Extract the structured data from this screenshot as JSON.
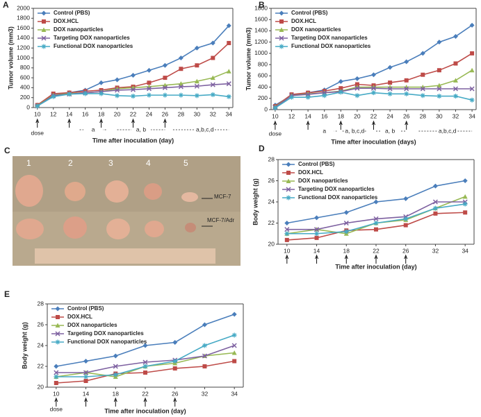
{
  "chart_data": [
    {
      "type": "line",
      "panel": "A",
      "xlabel": "Time after inoculation (day)",
      "ylabel": "Tumor volume (mm3)",
      "x": [
        10,
        12,
        14,
        16,
        18,
        20,
        22,
        24,
        26,
        28,
        30,
        32,
        34
      ],
      "xlim": [
        9.5,
        34.5
      ],
      "xticks": [
        10,
        12,
        14,
        16,
        18,
        20,
        22,
        24,
        26,
        28,
        30,
        32,
        34
      ],
      "ylim": [
        0,
        2000
      ],
      "yticks": [
        0,
        200,
        400,
        600,
        800,
        1000,
        1200,
        1400,
        1600,
        1800,
        2000
      ],
      "legend": "upper left",
      "dose_label": "dose",
      "dose_days": [
        10,
        14,
        18,
        22,
        26
      ],
      "annotations": [
        "a",
        "a, b",
        "a,b,c,d"
      ],
      "series": [
        {
          "name": "Control (PBS)",
          "color": "#4a7ebb",
          "marker": "diamond",
          "values": [
            50,
            250,
            300,
            350,
            500,
            560,
            650,
            750,
            850,
            1000,
            1200,
            1300,
            1650
          ]
        },
        {
          "name": "DOX.HCL",
          "color": "#be4b48",
          "marker": "square",
          "values": [
            50,
            280,
            300,
            330,
            350,
            400,
            420,
            500,
            600,
            780,
            850,
            1000,
            1300
          ]
        },
        {
          "name": "DOX nanoparticles",
          "color": "#98b954",
          "marker": "triangle",
          "values": [
            40,
            250,
            280,
            300,
            320,
            380,
            400,
            420,
            450,
            480,
            530,
            600,
            730
          ]
        },
        {
          "name": "Targeting DOX nanoparticles",
          "color": "#7d60a0",
          "marker": "x",
          "values": [
            30,
            240,
            270,
            300,
            320,
            350,
            360,
            380,
            400,
            420,
            430,
            460,
            480
          ]
        },
        {
          "name": "Functional DOX nanoparticles",
          "color": "#46aac5",
          "marker": "star",
          "values": [
            30,
            220,
            270,
            280,
            280,
            240,
            230,
            250,
            250,
            250,
            240,
            260,
            220
          ]
        }
      ]
    },
    {
      "type": "line",
      "panel": "B",
      "xlabel": "Time after inoculation (days)",
      "ylabel": "Tumor volume (mm3)",
      "x": [
        10,
        12,
        14,
        16,
        18,
        20,
        22,
        24,
        26,
        28,
        30,
        32,
        34
      ],
      "xlim": [
        9.5,
        34.5
      ],
      "xticks": [
        10,
        12,
        14,
        16,
        18,
        20,
        22,
        24,
        26,
        28,
        30,
        32,
        34
      ],
      "ylim": [
        0,
        1800
      ],
      "yticks": [
        0,
        200,
        400,
        600,
        800,
        1000,
        1200,
        1400,
        1600,
        1800
      ],
      "legend": "upper left",
      "dose_label": "dose",
      "dose_days": [
        10,
        14,
        18,
        22,
        26
      ],
      "annotations": [
        "a",
        "a, b,c,d",
        "a, b",
        "a,b,c,d"
      ],
      "series": [
        {
          "name": "Control (PBS)",
          "color": "#4a7ebb",
          "marker": "diamond",
          "values": [
            80,
            250,
            300,
            350,
            500,
            550,
            620,
            750,
            850,
            1000,
            1200,
            1300,
            1500
          ]
        },
        {
          "name": "DOX.HCL",
          "color": "#be4b48",
          "marker": "square",
          "values": [
            60,
            270,
            300,
            330,
            380,
            450,
            430,
            480,
            520,
            620,
            700,
            820,
            1000
          ]
        },
        {
          "name": "DOX nanoparticles",
          "color": "#98b954",
          "marker": "triangle",
          "values": [
            50,
            250,
            280,
            300,
            330,
            400,
            400,
            400,
            400,
            400,
            430,
            520,
            700
          ]
        },
        {
          "name": "Targeting DOX nanoparticles",
          "color": "#7d60a0",
          "marker": "x",
          "values": [
            40,
            250,
            270,
            300,
            320,
            380,
            380,
            370,
            370,
            370,
            370,
            370,
            370
          ]
        },
        {
          "name": "Functional DOX nanoparticles",
          "color": "#46aac5",
          "marker": "star",
          "values": [
            30,
            220,
            220,
            250,
            310,
            250,
            300,
            280,
            280,
            250,
            240,
            240,
            170
          ]
        }
      ]
    },
    {
      "type": "line",
      "panel": "D",
      "xlabel": "Time after inoculation (day)",
      "ylabel": "Body weight (g)",
      "categories": [
        10,
        14,
        18,
        22,
        26,
        32,
        34
      ],
      "ylim": [
        20,
        28
      ],
      "yticks": [
        20,
        22,
        24,
        26,
        28
      ],
      "legend": "upper left",
      "dose_days": [
        10,
        14,
        18,
        22,
        26
      ],
      "series": [
        {
          "name": "Control (PBS)",
          "color": "#4a7ebb",
          "marker": "diamond",
          "values": [
            22,
            22.5,
            23,
            24,
            24.3,
            25.5,
            26
          ]
        },
        {
          "name": "DOX.HCL",
          "color": "#be4b48",
          "marker": "square",
          "values": [
            20.4,
            20.6,
            21.3,
            21.4,
            21.8,
            22.9,
            23
          ]
        },
        {
          "name": "DOX nanoparticles",
          "color": "#98b954",
          "marker": "triangle",
          "values": [
            21,
            21.4,
            21,
            22,
            22.3,
            23.4,
            24.5
          ]
        },
        {
          "name": "Targeting DOX nanoparticles",
          "color": "#7d60a0",
          "marker": "x",
          "values": [
            21.4,
            21.4,
            22,
            22.4,
            22.6,
            24,
            24
          ]
        },
        {
          "name": "Functional DOX nanoparticles",
          "color": "#46aac5",
          "marker": "star",
          "values": [
            21,
            21,
            21.2,
            22,
            22.4,
            23.4,
            23.8
          ]
        }
      ]
    },
    {
      "type": "line",
      "panel": "E",
      "xlabel": "Time after inoculation (day)",
      "ylabel": "Body weight (g)",
      "categories": [
        10,
        14,
        18,
        22,
        26,
        32,
        34
      ],
      "ylim": [
        20,
        28
      ],
      "yticks": [
        20,
        22,
        24,
        26,
        28
      ],
      "legend": "upper left",
      "dose_label": "dose",
      "dose_days": [
        10,
        14,
        18,
        22,
        26
      ],
      "series": [
        {
          "name": "Control (PBS)",
          "color": "#4a7ebb",
          "marker": "diamond",
          "values": [
            22,
            22.5,
            23,
            24,
            24.3,
            26,
            27
          ]
        },
        {
          "name": "DOX.HCL",
          "color": "#be4b48",
          "marker": "square",
          "values": [
            20.4,
            20.6,
            21.3,
            21.4,
            21.8,
            22,
            22.5
          ]
        },
        {
          "name": "DOX nanoparticles",
          "color": "#98b954",
          "marker": "triangle",
          "values": [
            21,
            21.4,
            21,
            22,
            22.3,
            23,
            23.3
          ]
        },
        {
          "name": "Targeting DOX nanoparticles",
          "color": "#7d60a0",
          "marker": "x",
          "values": [
            21.4,
            21.4,
            22,
            22.4,
            22.6,
            23,
            24
          ]
        },
        {
          "name": "Functional DOX nanoparticles",
          "color": "#46aac5",
          "marker": "star",
          "values": [
            21,
            21,
            21.2,
            22,
            22.5,
            24,
            25
          ]
        }
      ]
    }
  ],
  "photo": {
    "panel": "C",
    "numbers": [
      "1",
      "2",
      "3",
      "4",
      "5"
    ],
    "row_labels": [
      "MCF-7",
      "MCF-7/Adr"
    ]
  }
}
